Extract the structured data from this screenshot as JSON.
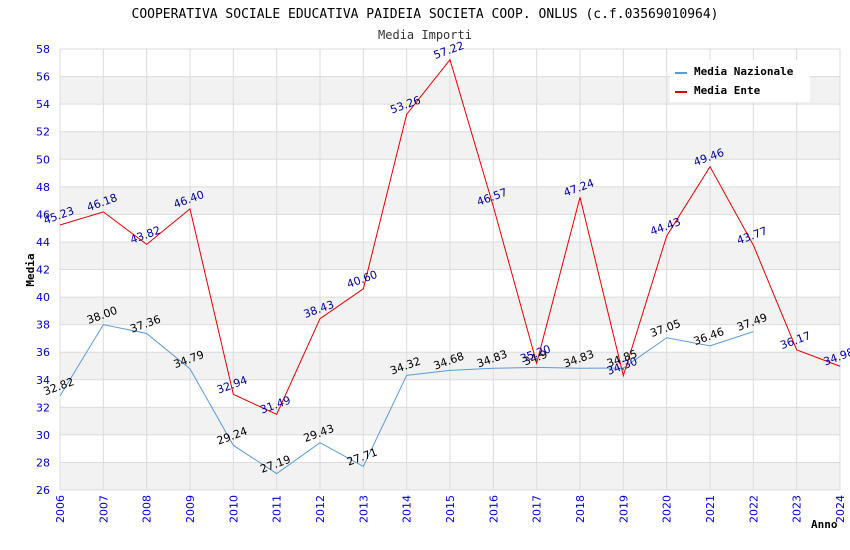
{
  "chart_data": {
    "type": "line",
    "title": "COOPERATIVA SOCIALE EDUCATIVA PAIDEIA SOCIETA COOP. ONLUS (c.f.03569010964)",
    "subtitle": "Media Importi",
    "xlabel": "Anno",
    "ylabel": "Media",
    "ylim": [
      26,
      58
    ],
    "yticks": [
      "26",
      "28",
      "30",
      "32",
      "34",
      "36",
      "38",
      "40",
      "42",
      "44",
      "46",
      "48",
      "50",
      "52",
      "54",
      "56",
      "58"
    ],
    "categories": [
      "2006",
      "2007",
      "2008",
      "2009",
      "2010",
      "2011",
      "2012",
      "2013",
      "2014",
      "2015",
      "2016",
      "2017",
      "2018",
      "2019",
      "2020",
      "2021",
      "2022",
      "2023",
      "2024"
    ],
    "legend_position": "top-right",
    "series": [
      {
        "name": "Media Nazionale",
        "color": "#5b9bd5",
        "label_color": "#000000",
        "values": [
          32.82,
          38.0,
          37.36,
          34.79,
          29.24,
          27.19,
          29.43,
          27.71,
          34.32,
          34.68,
          34.83,
          34.9,
          34.83,
          34.85,
          37.05,
          36.46,
          37.49,
          null,
          null
        ],
        "labels": [
          "32.82",
          "38.00",
          "37.36",
          "34.79",
          "29.24",
          "27.19",
          "29.43",
          "27.71",
          "34.32",
          "34.68",
          "34.83",
          "34.9",
          "34.83",
          "34.85",
          "37.05",
          "36.46",
          "37.49",
          null,
          null
        ]
      },
      {
        "name": "Media Ente",
        "color": "#e60000",
        "label_color": "#000099",
        "values": [
          45.23,
          46.18,
          43.82,
          46.4,
          32.94,
          31.49,
          38.43,
          40.6,
          53.26,
          57.22,
          46.57,
          35.2,
          47.24,
          34.3,
          44.43,
          49.46,
          43.77,
          36.17,
          34.98
        ],
        "labels": [
          "45.23",
          "46.18",
          "43.82",
          "46.40",
          "32.94",
          "31.49",
          "38.43",
          "40.60",
          "53.26",
          "57.22",
          "46.57",
          "35.20",
          "47.24",
          "34.30",
          "44.43",
          "49.46",
          "43.77",
          "36.17",
          "34.98"
        ]
      }
    ]
  }
}
